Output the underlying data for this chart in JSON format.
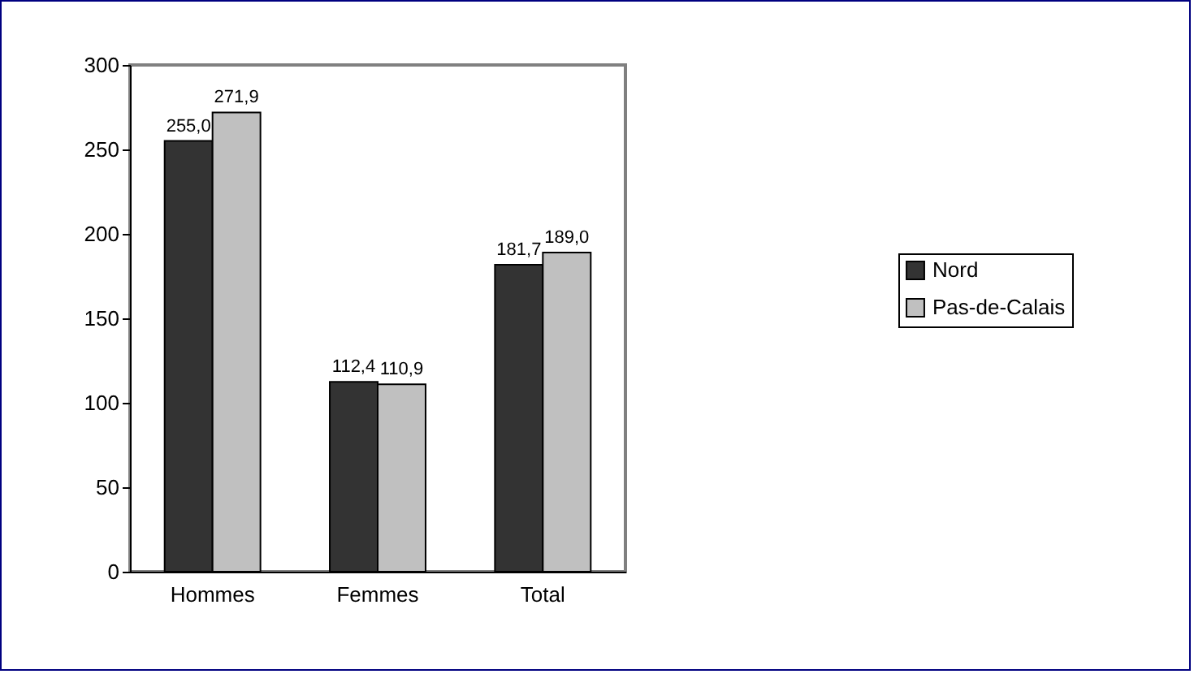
{
  "chart_data": {
    "type": "bar",
    "categories": [
      "Hommes",
      "Femmes",
      "Total"
    ],
    "series": [
      {
        "name": "Nord",
        "color": "#333333",
        "values": [
          255.0,
          112.4,
          181.7
        ],
        "value_labels": [
          "255,0",
          "112,4",
          "181,7"
        ]
      },
      {
        "name": "Pas-de-Calais",
        "color": "#c0c0c0",
        "values": [
          271.9,
          110.9,
          189.0
        ],
        "value_labels": [
          "271,9",
          "110,9",
          "189,0"
        ]
      }
    ],
    "ylim": [
      0,
      300
    ],
    "yticks": [
      0,
      50,
      100,
      150,
      200,
      250,
      300
    ],
    "grid": false,
    "legend": "right"
  }
}
